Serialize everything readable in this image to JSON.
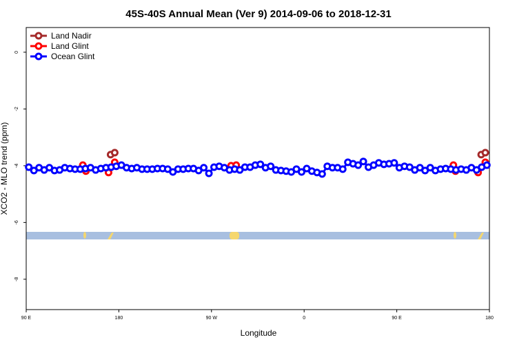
{
  "chart_data": {
    "type": "line",
    "title": "45S-40S Annual Mean (Ver 9)   2014-09-06 to 2018-12-31",
    "x_label": "Longitude",
    "y_label": "XCO2 - MLO trend (ppm)",
    "xlim": [
      90,
      540
    ],
    "ylim": [
      -9.07,
      0.87
    ],
    "xticks": [
      {
        "value": 90,
        "label": "90 E"
      },
      180,
      {
        "value": 270,
        "label": "90 W"
      },
      {
        "value": 360,
        "label": "0"
      },
      {
        "value": 450,
        "label": "90 E"
      },
      {
        "value": 540,
        "label": "180"
      }
    ],
    "yticks": [
      0,
      -2,
      -4,
      -6,
      -8
    ],
    "legend": "top-left",
    "series": [
      {
        "name": "Land Nadir",
        "color": "#a52a2a",
        "x": [
          172,
          176,
          null,
          532,
          536
        ],
        "values": [
          -3.61,
          -3.54,
          null,
          -3.61,
          -3.54
        ]
      },
      {
        "name": "Land Glint",
        "color": "#ff0000",
        "x": [
          145,
          148,
          null,
          170,
          176,
          null,
          289,
          294,
          null,
          505,
          507,
          null,
          529,
          536
        ],
        "values": [
          -3.98,
          -4.19,
          null,
          -4.24,
          -3.88,
          null,
          -4.0,
          -3.98,
          null,
          -3.98,
          -4.19,
          null,
          -4.24,
          -3.88
        ]
      },
      {
        "name": "Ocean Glint",
        "color": "#0000ff",
        "x": [
          92.5,
          97.5,
          102.5,
          107.5,
          112.5,
          117.5,
          122.5,
          127.5,
          132.5,
          137.5,
          142.5,
          147.5,
          152.5,
          157.5,
          162.5,
          167.5,
          172.5,
          177.5,
          182.5,
          187.5,
          192.5,
          197.5,
          202.5,
          207.5,
          212.5,
          217.5,
          222.5,
          227.5,
          232.5,
          237.5,
          242.5,
          247.5,
          252.5,
          257.5,
          262.5,
          267.5,
          272.5,
          277.5,
          282.5,
          287.5,
          292.5,
          297.5,
          302.5,
          307.5,
          312.5,
          317.5,
          322.5,
          327.5,
          332.5,
          337.5,
          342.5,
          347.5,
          352.5,
          357.5,
          362.5,
          367.5,
          372.5,
          377.5,
          382.5,
          387.5,
          392.5,
          397.5,
          402.5,
          407.5,
          412.5,
          417.5,
          422.5,
          427.5,
          432.5,
          437.5,
          442.5,
          447.5,
          452.5,
          457.5,
          462.5,
          467.5,
          472.5,
          477.5,
          482.5,
          487.5,
          492.5,
          497.5,
          502.5,
          507.5,
          512.5,
          517.5,
          522.5,
          527.5,
          532.5,
          537.5
        ],
        "values": [
          -4.05,
          -4.17,
          -4.07,
          -4.15,
          -4.07,
          -4.17,
          -4.15,
          -4.07,
          -4.1,
          -4.12,
          -4.12,
          -4.1,
          -4.07,
          -4.15,
          -4.1,
          -4.07,
          -4.05,
          -4.02,
          -3.98,
          -4.07,
          -4.1,
          -4.07,
          -4.12,
          -4.12,
          -4.12,
          -4.1,
          -4.1,
          -4.12,
          -4.22,
          -4.12,
          -4.12,
          -4.1,
          -4.1,
          -4.17,
          -4.07,
          -4.27,
          -4.05,
          -4.02,
          -4.07,
          -4.15,
          -4.12,
          -4.15,
          -4.05,
          -4.05,
          -3.98,
          -3.95,
          -4.07,
          -4.02,
          -4.15,
          -4.17,
          -4.19,
          -4.22,
          -4.12,
          -4.22,
          -4.1,
          -4.19,
          -4.24,
          -4.29,
          -4.02,
          -4.07,
          -4.07,
          -4.12,
          -3.88,
          -3.93,
          -3.98,
          -3.85,
          -4.05,
          -3.98,
          -3.9,
          -3.95,
          -3.93,
          -3.9,
          -4.07,
          -4.02,
          -4.05,
          -4.15,
          -4.07,
          -4.17,
          -4.07,
          -4.17,
          -4.12,
          -4.1,
          -4.12,
          -4.15,
          -4.12,
          -4.15,
          -4.07,
          -4.15,
          -4.05,
          -3.98
        ]
      }
    ]
  }
}
